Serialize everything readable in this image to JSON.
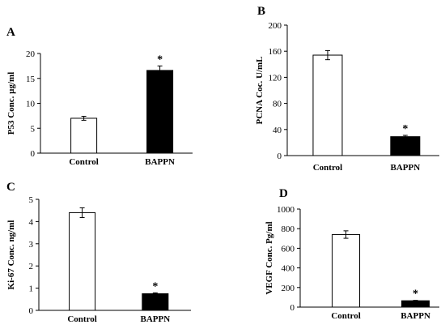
{
  "chart_data": [
    {
      "panel": "A",
      "type": "bar",
      "ylabel": "P53 Conc. µg/ml",
      "categories": [
        "Control",
        "BAPPN"
      ],
      "values": [
        7.0,
        16.6
      ],
      "errors": [
        0.4,
        0.9
      ],
      "bar_colors": [
        "#ffffff",
        "#000000"
      ],
      "ylim": [
        0,
        20
      ],
      "yticks": [
        0,
        5,
        10,
        15,
        20
      ],
      "significance": [
        "",
        "*"
      ]
    },
    {
      "panel": "B",
      "type": "bar",
      "ylabel": "PCNA Coc. U/mL",
      "categories": [
        "Control",
        "BAPPN"
      ],
      "values": [
        154,
        29
      ],
      "errors": [
        7,
        2
      ],
      "bar_colors": [
        "#ffffff",
        "#000000"
      ],
      "ylim": [
        0,
        200
      ],
      "yticks": [
        0,
        40,
        80,
        120,
        160,
        200
      ],
      "significance": [
        "",
        "*"
      ]
    },
    {
      "panel": "C",
      "type": "bar",
      "ylabel": "Ki-67 Conc. ng/ml",
      "categories": [
        "Control",
        "BAPPN"
      ],
      "values": [
        4.4,
        0.75
      ],
      "errors": [
        0.22,
        0.04
      ],
      "bar_colors": [
        "#ffffff",
        "#000000"
      ],
      "ylim": [
        0,
        5
      ],
      "yticks": [
        0,
        1,
        2,
        3,
        4,
        5
      ],
      "significance": [
        "",
        "*"
      ]
    },
    {
      "panel": "D",
      "type": "bar",
      "ylabel": "VEGF Conc. Pg/ml",
      "categories": [
        "Control",
        "BAPPN"
      ],
      "values": [
        740,
        65
      ],
      "errors": [
        38,
        4
      ],
      "bar_colors": [
        "#ffffff",
        "#000000"
      ],
      "ylim": [
        0,
        1000
      ],
      "yticks": [
        0,
        200,
        400,
        600,
        800,
        1000
      ],
      "significance": [
        "",
        "*"
      ]
    }
  ]
}
